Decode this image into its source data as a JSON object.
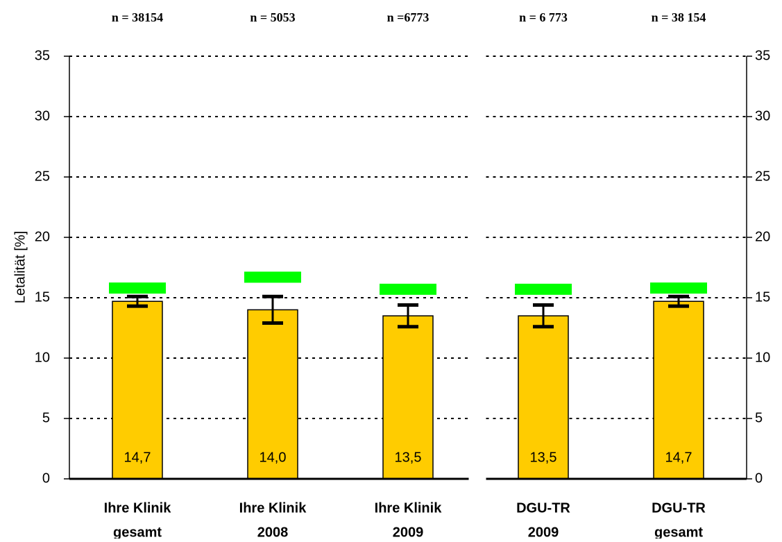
{
  "chart_data": {
    "type": "bar",
    "y_label": "Letalität [%]",
    "categories": [
      [
        "Ihre Klinik",
        "gesamt"
      ],
      [
        "Ihre Klinik",
        "2008"
      ],
      [
        "Ihre Klinik",
        "2009"
      ],
      [
        "DGU-TR",
        "2009"
      ],
      [
        "DGU-TR",
        "gesamt"
      ]
    ],
    "n_labels": [
      "n = 38154",
      "n = 5053",
      "n =6773",
      "n = 6 773",
      "n = 38 154"
    ],
    "values": [
      14.7,
      14.0,
      13.5,
      13.5,
      14.7
    ],
    "value_labels": [
      "14,7",
      "14,0",
      "13,5",
      "13,5",
      "14,7"
    ],
    "errors": [
      0.4,
      1.1,
      0.9,
      0.9,
      0.4
    ],
    "expected": [
      15.8,
      16.7,
      15.7,
      15.7,
      15.8
    ],
    "color": "#ffcc00",
    "expected_color": "#00ff00",
    "panel_sizes": [
      3,
      2
    ],
    "ylim": [
      0,
      35
    ],
    "yticks": [
      0,
      5,
      10,
      15,
      20,
      25,
      30,
      35
    ],
    "grid": true,
    "mirror_y_axis": true
  }
}
